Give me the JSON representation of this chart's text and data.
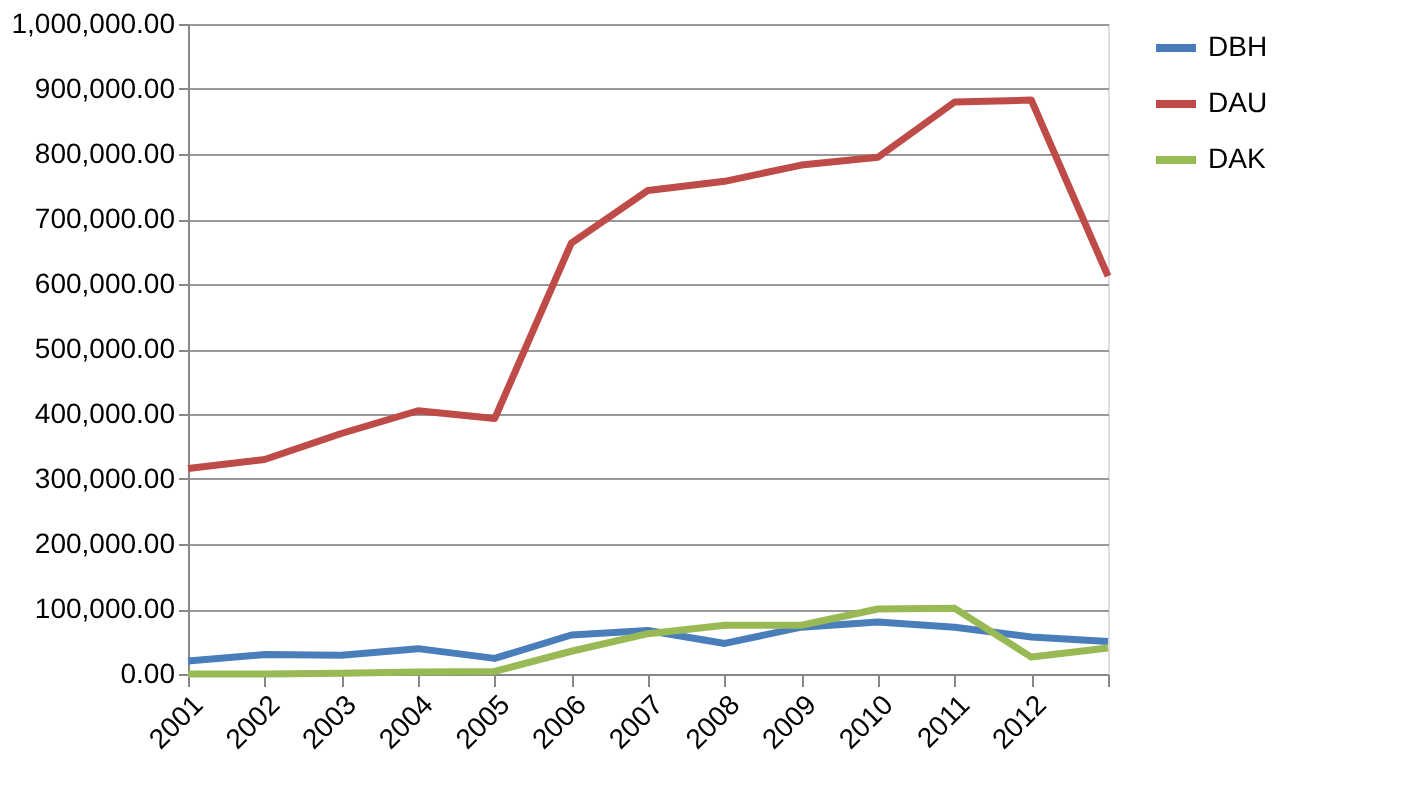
{
  "chart_data": {
    "type": "line",
    "categories": [
      "2001",
      "2002",
      "2003",
      "2004",
      "2005",
      "2006",
      "2007",
      "2008",
      "2009",
      "2010",
      "2011",
      "2012",
      null
    ],
    "series": [
      {
        "name": "DBH",
        "color": "#4a7ebb",
        "values": [
          20000,
          30000,
          29000,
          39000,
          24000,
          60000,
          67000,
          47000,
          72000,
          80000,
          72000,
          57000,
          50000
        ]
      },
      {
        "name": "DAU",
        "color": "#be4b48",
        "values": [
          316000,
          330000,
          370000,
          405000,
          393000,
          663000,
          744000,
          758000,
          783000,
          795000,
          880000,
          883000,
          612000
        ]
      },
      {
        "name": "DAK",
        "color": "#98b954",
        "values": [
          0,
          0,
          1000,
          3000,
          4000,
          35000,
          62000,
          75000,
          75000,
          100000,
          101000,
          26000,
          40000
        ]
      }
    ],
    "ylim": [
      0,
      1000000
    ],
    "yticks": [
      {
        "value": 0,
        "label": "0.00"
      },
      {
        "value": 100000,
        "label": "100,000.00"
      },
      {
        "value": 200000,
        "label": "200,000.00"
      },
      {
        "value": 300000,
        "label": "300,000.00"
      },
      {
        "value": 400000,
        "label": "400,000.00"
      },
      {
        "value": 500000,
        "label": "500,000.00"
      },
      {
        "value": 600000,
        "label": "600,000.00"
      },
      {
        "value": 700000,
        "label": "700,000.00"
      },
      {
        "value": 800000,
        "label": "800,000.00"
      },
      {
        "value": 900000,
        "label": "900,000.00"
      },
      {
        "value": 1000000,
        "label": "1,000,000.00"
      }
    ],
    "grid": "y",
    "legend": "right",
    "marker": "none",
    "line_style": "solid"
  }
}
